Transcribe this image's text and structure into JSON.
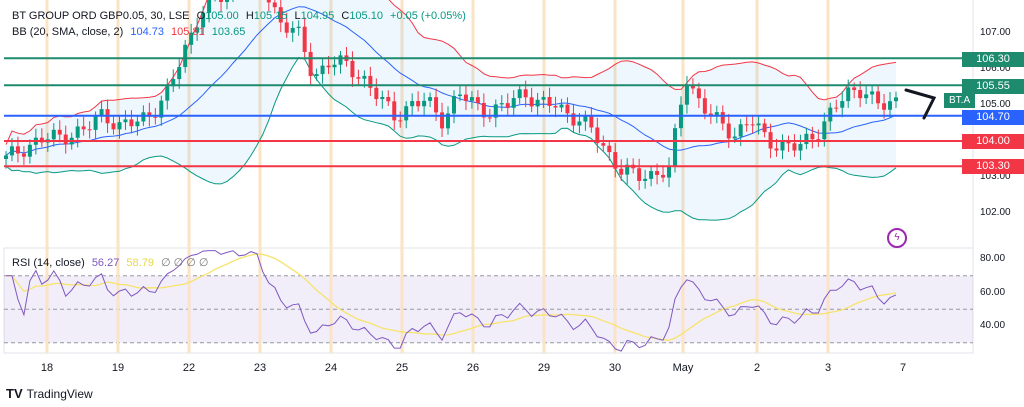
{
  "header": {
    "symbol": "BT GROUP ORD GBP0.05, 30, LSE",
    "o_label": "O",
    "o": "105.00",
    "h_label": "H",
    "h": "105.15",
    "l_label": "L",
    "l": "104.95",
    "c_label": "C",
    "c": "105.10",
    "change": "+0.05 (+0.05%)"
  },
  "bb": {
    "label": "BB (20, SMA, close, 2)",
    "basis": "104.73",
    "upper": "105.81",
    "lower": "103.65"
  },
  "rsi": {
    "label": "RSI (14, close)",
    "value": "56.27",
    "ma": "58.79",
    "extras": "∅ ∅ ∅ ∅"
  },
  "price_axis": [
    "107.00",
    "106.00",
    "105.00",
    "103.00",
    "102.00"
  ],
  "rsi_axis": [
    "80.00",
    "60.00",
    "40.00"
  ],
  "levels": [
    {
      "value": "106.30",
      "color": "#1e8a6e"
    },
    {
      "value": "105.55",
      "color": "#1e8a6e"
    },
    {
      "value": "104.70",
      "color": "#2962ff"
    },
    {
      "value": "104.00",
      "color": "#f23645"
    },
    {
      "value": "103.30",
      "color": "#f23645"
    }
  ],
  "symbol_tag": "BT.A",
  "dates": [
    "18",
    "19",
    "22",
    "23",
    "24",
    "25",
    "26",
    "29",
    "30",
    "May",
    "2",
    "3",
    "7"
  ],
  "brand": "TradingView",
  "colors": {
    "up": "#089981",
    "down": "#f23645",
    "basis": "#2962ff",
    "upper": "#f23645",
    "lower": "#089981",
    "rsi": "#7e57c2",
    "rsi_ma": "#f7e36b"
  },
  "chart_data": {
    "type": "candlestick",
    "price_range": [
      101.5,
      107.8
    ],
    "rsi_range": [
      25,
      85
    ],
    "close_keypoints": [
      103.5,
      103.8,
      104.0,
      104.1,
      104.2,
      104.3,
      104.8,
      104.4,
      104.5,
      104.8,
      105.3,
      106.5,
      107.6,
      107.9,
      108.2,
      108.5,
      108.2,
      107.3,
      107.0,
      105.8,
      106.2,
      106.1,
      105.8,
      105.2,
      104.7,
      105.0,
      105.1,
      104.6,
      105.3,
      105.0,
      104.8,
      105.0,
      105.4,
      105.0,
      105.0,
      104.7,
      104.4,
      103.8,
      103.2,
      103.0,
      103.1,
      103.2,
      105.8,
      105.0,
      104.5,
      104.2,
      104.6,
      104.0,
      103.9,
      103.8,
      104.2,
      104.8,
      105.3,
      105.5,
      104.9,
      105.1
    ]
  }
}
